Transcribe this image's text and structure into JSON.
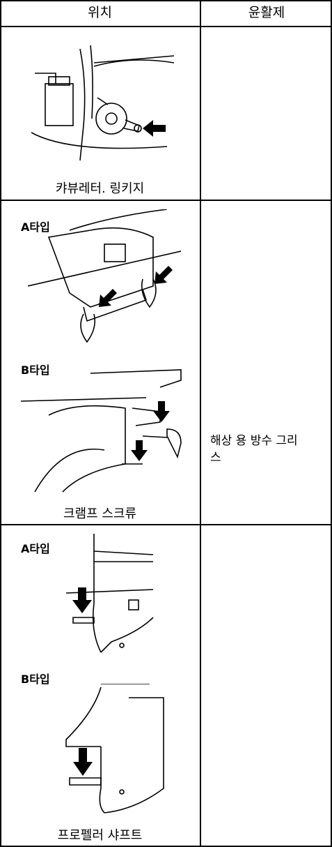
{
  "table": {
    "header": [
      "위치",
      "윤활제"
    ],
    "rows": [
      {
        "location": {
          "label": "캬뷰레터. 링키지"
        }
      },
      {
        "location": {
          "label": "크램프 스크류",
          "variants": [
            "A타입",
            "B타입"
          ]
        }
      },
      {
        "location": {
          "label": "프로펠러 샤프트",
          "variants": [
            "A타입",
            "B타입"
          ]
        }
      }
    ],
    "lubricant": "해상 용 방수 그리스"
  }
}
